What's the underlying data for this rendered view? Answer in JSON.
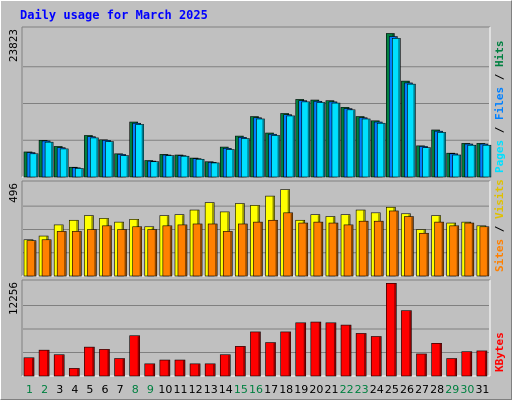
{
  "chart_data": {
    "type": "bar",
    "title": "Daily usage for March 2025",
    "categories": [
      "1",
      "2",
      "3",
      "4",
      "5",
      "6",
      "7",
      "8",
      "9",
      "10",
      "11",
      "12",
      "13",
      "14",
      "15",
      "16",
      "17",
      "18",
      "19",
      "20",
      "21",
      "22",
      "23",
      "24",
      "25",
      "26",
      "27",
      "28",
      "29",
      "30",
      "31"
    ],
    "weekend_days": [
      "1",
      "2",
      "8",
      "9",
      "15",
      "16",
      "22",
      "23",
      "29",
      "30"
    ],
    "panels": [
      {
        "max_label": "23823",
        "ymax": 23823,
        "series": [
          {
            "name": "Hits",
            "color": "#008040",
            "values": [
              4100,
              6000,
              5000,
              1600,
              6800,
              6100,
              3800,
              9000,
              2700,
              3700,
              3600,
              3100,
              2500,
              4900,
              6700,
              9900,
              7200,
              10400,
              12700,
              12600,
              12500,
              11400,
              9900,
              9200,
              23500,
              15700,
              5100,
              7700,
              3900,
              5500,
              5500
            ]
          },
          {
            "name": "Files",
            "color": "#0080ff",
            "values": [
              4000,
              5900,
              4800,
              1500,
              6600,
              6000,
              3700,
              8800,
              2600,
              3600,
              3500,
              3000,
              2400,
              4700,
              6500,
              9700,
              7000,
              10200,
              12500,
              12400,
              12300,
              11200,
              9700,
              9000,
              23000,
              15400,
              5000,
              7500,
              3800,
              5400,
              5400
            ]
          },
          {
            "name": "Pages",
            "color": "#00e0ff",
            "values": [
              3800,
              5700,
              4600,
              1400,
              6400,
              5800,
              3500,
              8600,
              2500,
              3500,
              3400,
              2900,
              2300,
              4500,
              6300,
              9500,
              6800,
              10000,
              12300,
              12200,
              12100,
              11000,
              9500,
              8800,
              22700,
              15200,
              4800,
              7300,
              3600,
              5200,
              5200
            ]
          }
        ]
      },
      {
        "max_label": "496",
        "ymax": 496,
        "series": [
          {
            "name": "Visits",
            "color": "#ffff00",
            "values": [
              195,
              215,
              275,
              300,
              325,
              310,
              290,
              305,
              265,
              325,
              330,
              355,
              395,
              345,
              390,
              380,
              430,
              465,
              300,
              330,
              320,
              330,
              355,
              340,
              370,
              335,
              250,
              325,
              285,
              290,
              270
            ]
          },
          {
            "name": "Sites",
            "color": "#ff8000",
            "values": [
              190,
              195,
              240,
              240,
              250,
              270,
              250,
              265,
              250,
              270,
              275,
              280,
              280,
              240,
              280,
              290,
              300,
              340,
              285,
              290,
              285,
              275,
              295,
              295,
              350,
              320,
              230,
              290,
              270,
              285,
              265
            ]
          }
        ]
      },
      {
        "max_label": "12256",
        "ymax": 12256,
        "series": [
          {
            "name": "KBytes",
            "color": "#ff0000",
            "values": [
              2400,
              3400,
              2800,
              1000,
              3800,
              3500,
              2300,
              5300,
              1600,
              2100,
              2100,
              1600,
              1600,
              2800,
              3900,
              5800,
              4400,
              5800,
              7000,
              7100,
              7000,
              6700,
              5600,
              5200,
              12200,
              8600,
              2900,
              4300,
              2300,
              3200,
              3300
            ]
          }
        ]
      }
    ]
  }
}
